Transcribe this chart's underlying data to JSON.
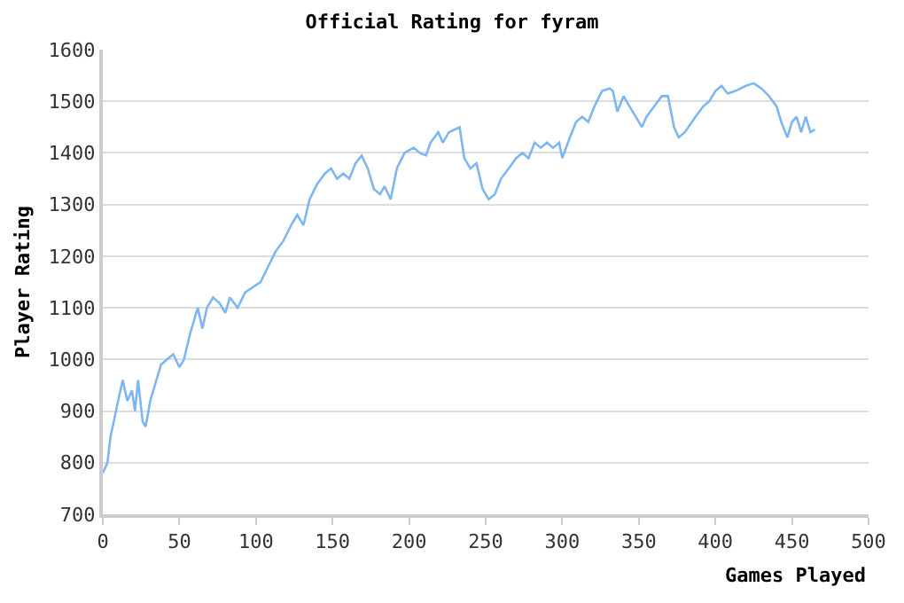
{
  "chart_data": {
    "type": "line",
    "title": "Official Rating for fyram",
    "xlabel": "Games Played",
    "ylabel": "Player Rating",
    "x": [
      0,
      3,
      5,
      10,
      13,
      16,
      19,
      21,
      23,
      26,
      28,
      31,
      35,
      38,
      42,
      46,
      50,
      53,
      57,
      62,
      65,
      68,
      72,
      76,
      80,
      83,
      88,
      93,
      98,
      103,
      108,
      113,
      118,
      123,
      127,
      131,
      135,
      140,
      145,
      149,
      153,
      157,
      161,
      165,
      169,
      173,
      177,
      181,
      184,
      188,
      192,
      197,
      203,
      207,
      211,
      214,
      219,
      222,
      226,
      233,
      236,
      240,
      244,
      248,
      252,
      256,
      260,
      265,
      270,
      274,
      278,
      282,
      286,
      290,
      294,
      298,
      300,
      305,
      309,
      313,
      317,
      321,
      326,
      331,
      333,
      336,
      340,
      344,
      348,
      352,
      355,
      360,
      365,
      369,
      373,
      376,
      380,
      387,
      392,
      396,
      400,
      404,
      408,
      413,
      420,
      425,
      430,
      435,
      440,
      443,
      447,
      450,
      453,
      456,
      459,
      462,
      465
    ],
    "series": [
      {
        "color": "#7eb6f0",
        "values": [
          780,
          800,
          850,
          920,
          960,
          920,
          940,
          900,
          960,
          880,
          870,
          920,
          960,
          990,
          1000,
          1010,
          985,
          1000,
          1050,
          1100,
          1060,
          1100,
          1120,
          1110,
          1090,
          1120,
          1100,
          1130,
          1140,
          1150,
          1180,
          1210,
          1230,
          1260,
          1280,
          1260,
          1310,
          1340,
          1360,
          1370,
          1350,
          1360,
          1350,
          1380,
          1395,
          1370,
          1330,
          1320,
          1335,
          1310,
          1370,
          1400,
          1410,
          1400,
          1395,
          1420,
          1440,
          1420,
          1440,
          1450,
          1390,
          1370,
          1380,
          1330,
          1310,
          1320,
          1350,
          1370,
          1390,
          1400,
          1390,
          1420,
          1410,
          1420,
          1410,
          1420,
          1390,
          1430,
          1460,
          1470,
          1460,
          1490,
          1520,
          1525,
          1520,
          1480,
          1510,
          1490,
          1470,
          1450,
          1470,
          1490,
          1510,
          1510,
          1450,
          1430,
          1440,
          1470,
          1490,
          1500,
          1520,
          1530,
          1515,
          1520,
          1530,
          1535,
          1525,
          1510,
          1490,
          1460,
          1430,
          1460,
          1470,
          1440,
          1470,
          1440,
          1445
        ]
      }
    ],
    "xlim": [
      0,
      500
    ],
    "xticks": [
      0,
      50,
      100,
      150,
      200,
      250,
      300,
      350,
      400,
      450,
      500
    ],
    "ylim": [
      700,
      1600
    ],
    "yticks": [
      700,
      800,
      900,
      1000,
      1100,
      1200,
      1300,
      1400,
      1500,
      1600
    ],
    "grid": "y",
    "marker": "none",
    "line_style": "solid"
  }
}
